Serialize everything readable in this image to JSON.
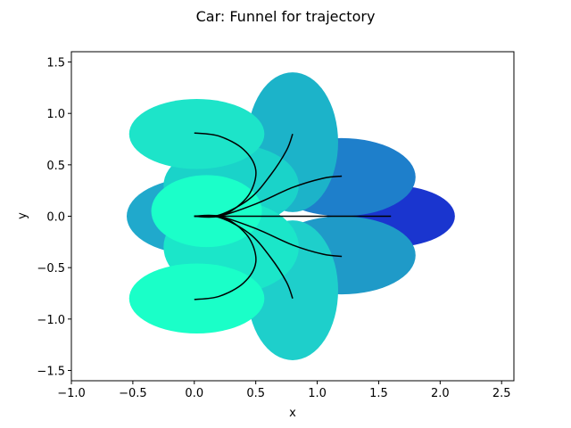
{
  "chart_data": {
    "type": "scatter",
    "title": "Car: Funnel for trajectory",
    "xlabel": "x",
    "ylabel": "y",
    "xlim": [
      -1.0,
      2.6
    ],
    "ylim": [
      -1.6,
      1.6
    ],
    "xticks": [
      -1.0,
      -0.5,
      0.0,
      0.5,
      1.0,
      1.5,
      2.0,
      2.5
    ],
    "yticks": [
      -1.5,
      -1.0,
      -0.5,
      0.0,
      0.5,
      1.0,
      1.5
    ],
    "xtick_labels": [
      "−1.0",
      "−0.5",
      "0.0",
      "0.5",
      "1.0",
      "1.5",
      "2.0",
      "2.5"
    ],
    "ytick_labels": [
      "−1.5",
      "−1.0",
      "−0.5",
      "0.0",
      "0.5",
      "1.0",
      "1.5"
    ],
    "grid": false,
    "funnels": [
      {
        "cx": 1.6,
        "cy": 0.0,
        "rx": 0.52,
        "ry": 0.3,
        "color": "#1a35cf"
      },
      {
        "cx": 1.2,
        "cy": 0.38,
        "rx": 0.6,
        "ry": 0.38,
        "color": "#1e7fcb"
      },
      {
        "cx": 1.2,
        "cy": -0.38,
        "rx": 0.6,
        "ry": 0.38,
        "color": "#1f9ac8"
      },
      {
        "cx": 0.8,
        "cy": 0.72,
        "rx": 0.37,
        "ry": 0.68,
        "color": "#1cb3c9"
      },
      {
        "cx": 0.8,
        "cy": -0.72,
        "rx": 0.37,
        "ry": 0.68,
        "color": "#1ecfcb"
      },
      {
        "cx": 0.05,
        "cy": 0.0,
        "rx": 0.6,
        "ry": 0.38,
        "color": "#20a9cc"
      },
      {
        "cx": 0.3,
        "cy": 0.3,
        "rx": 0.55,
        "ry": 0.4,
        "color": "#1ad3c9"
      },
      {
        "cx": 0.3,
        "cy": -0.3,
        "rx": 0.55,
        "ry": 0.45,
        "color": "#1be6c9"
      },
      {
        "cx": 0.02,
        "cy": 0.8,
        "rx": 0.55,
        "ry": 0.34,
        "color": "#1de4c9"
      },
      {
        "cx": 0.02,
        "cy": -0.8,
        "rx": 0.55,
        "ry": 0.34,
        "color": "#1affc8"
      },
      {
        "cx": 0.1,
        "cy": 0.05,
        "rx": 0.45,
        "ry": 0.35,
        "color": "#1bffc9"
      }
    ],
    "series": [
      {
        "x": [
          0.0,
          0.2,
          0.6,
          1.0,
          1.3,
          1.6
        ],
        "y": [
          0.0,
          0.0,
          0.0,
          0.0,
          0.0,
          0.0
        ]
      },
      {
        "x": [
          0.0,
          0.2,
          0.5,
          0.8,
          1.05,
          1.2
        ],
        "y": [
          0.0,
          0.0,
          0.12,
          0.28,
          0.37,
          0.39
        ]
      },
      {
        "x": [
          0.0,
          0.2,
          0.5,
          0.8,
          1.05,
          1.2
        ],
        "y": [
          0.0,
          0.0,
          -0.12,
          -0.28,
          -0.37,
          -0.39
        ]
      },
      {
        "x": [
          0.0,
          0.2,
          0.45,
          0.62,
          0.75,
          0.8
        ],
        "y": [
          0.0,
          0.01,
          0.17,
          0.4,
          0.64,
          0.8
        ]
      },
      {
        "x": [
          0.0,
          0.2,
          0.45,
          0.62,
          0.75,
          0.8
        ],
        "y": [
          0.0,
          -0.01,
          -0.17,
          -0.4,
          -0.64,
          -0.8
        ]
      },
      {
        "x": [
          0.0,
          0.15,
          0.3,
          0.45,
          0.5,
          0.4,
          0.2,
          0.0
        ],
        "y": [
          0.0,
          0.0,
          0.05,
          0.22,
          0.45,
          0.65,
          0.78,
          0.81
        ]
      },
      {
        "x": [
          0.0,
          0.15,
          0.3,
          0.45,
          0.5,
          0.4,
          0.2,
          0.0
        ],
        "y": [
          0.0,
          0.0,
          -0.05,
          -0.22,
          -0.45,
          -0.65,
          -0.78,
          -0.81
        ]
      }
    ],
    "line_color": "#000000"
  }
}
